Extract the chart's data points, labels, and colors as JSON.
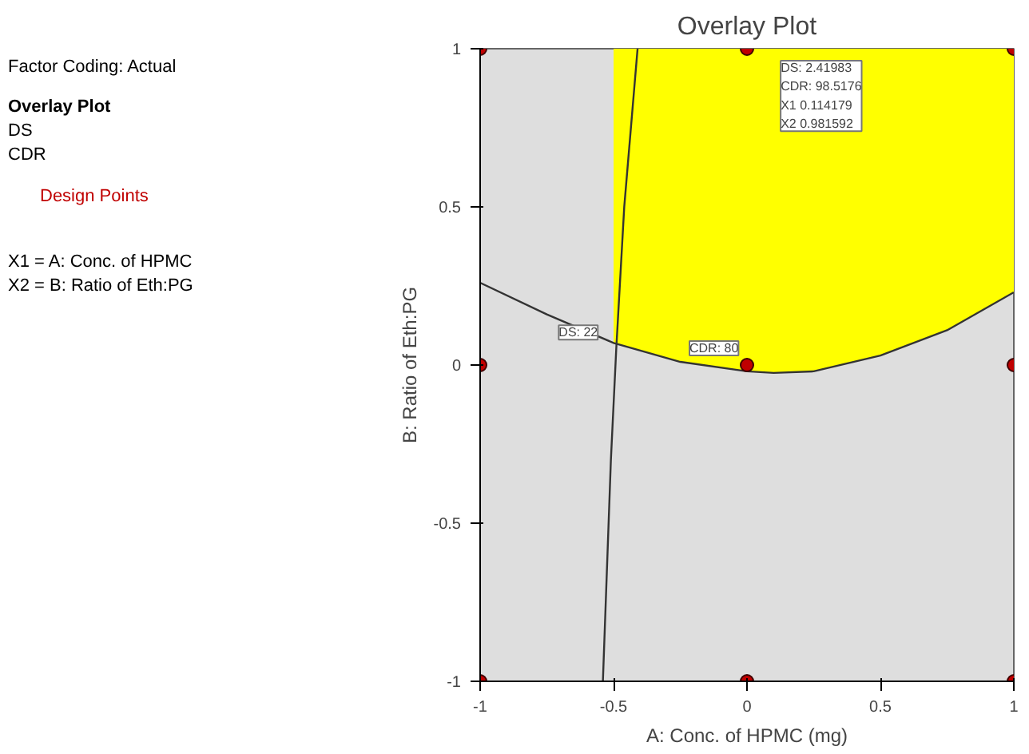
{
  "chart_data": {
    "type": "scatter",
    "title": "Overlay Plot",
    "xlabel": "A: Conc. of HPMC (mg)",
    "ylabel": "B: Ratio of Eth:PG",
    "xlim": [
      -1,
      1
    ],
    "ylim": [
      -1,
      1
    ],
    "xticks": [
      -1,
      -0.5,
      0,
      0.5,
      1
    ],
    "yticks": [
      -1,
      -0.5,
      0,
      0.5,
      1
    ],
    "grid": false,
    "legend": "left",
    "marker": "circle",
    "series": [
      {
        "type": "line",
        "marker": "none",
        "color": "#333333",
        "x": [
          -0.54,
          -0.51,
          -0.49,
          -0.46,
          -0.41
        ],
        "values": [
          -1,
          -0.3,
          0.05,
          0.5,
          1
        ]
      },
      {
        "type": "line",
        "marker": "none",
        "color": "#333333",
        "x": [
          -1,
          -0.75,
          -0.5,
          -0.25,
          0,
          0.1,
          0.25,
          0.5,
          0.75,
          1
        ],
        "values": [
          0.26,
          0.16,
          0.07,
          0.01,
          -0.02,
          -0.025,
          -0.02,
          0.03,
          0.11,
          0.23
        ],
        "lower": [
          null,
          null,
          0.07,
          0.01,
          -0.02,
          -0.025,
          -0.02,
          0.03,
          0.11,
          0.23
        ],
        "upper": [
          null,
          null,
          1,
          1,
          1,
          1,
          1,
          1,
          1,
          1
        ]
      },
      {
        "name": "Design Points",
        "color": "#c00000",
        "x": [
          -1,
          -1,
          -1,
          0,
          0,
          0,
          1,
          1,
          1
        ],
        "values": [
          -1,
          0,
          1,
          -1,
          0,
          1,
          -1,
          0,
          1
        ]
      }
    ],
    "annotations": [
      "Factor Coding: Actual",
      "Overlay Plot",
      "DS",
      "CDR",
      "X1 = A: Conc. of HPMC",
      "X2 = B: Ratio of Eth:PG",
      {
        "text": "DS: 22",
        "x": -0.49,
        "y": 0.05
      },
      {
        "text": "CDR: 80",
        "x": 0,
        "y": 0
      },
      {
        "text": "DS: 2.41983\nCDR: 98.5176\nX1 0.114179\nX2 0.981592",
        "x": 0.114179,
        "y": 0.981592
      }
    ]
  }
}
